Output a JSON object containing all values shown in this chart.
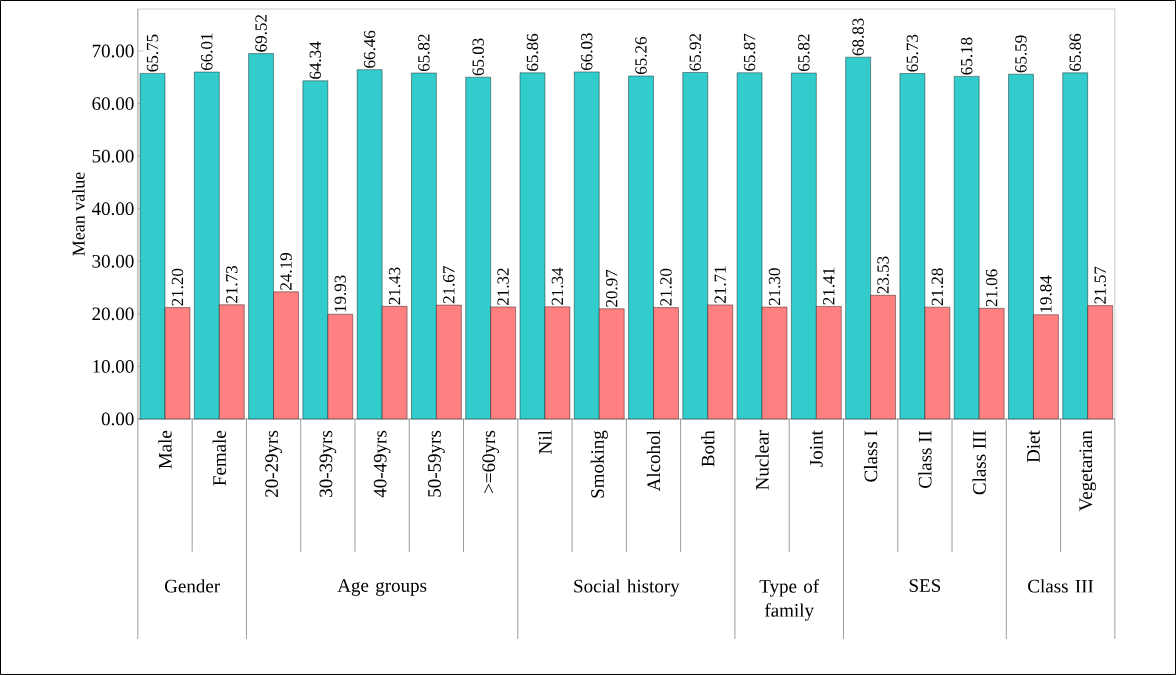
{
  "chart_data": {
    "type": "bar",
    "ylabel": "Mean value",
    "categories": [
      "Male",
      "Female",
      "20-29yrs",
      "30-39yrs",
      "40-49yrs",
      "50-59yrs",
      ">=60yrs",
      "Nil",
      "Smoking",
      "Alcohol",
      "Both",
      "Nuclear",
      "Joint",
      "Class I",
      "Class II",
      "Class III",
      "Diet",
      "Vegetarian"
    ],
    "series": [
      {
        "color": "#33cccc",
        "values": [
          65.75,
          66.01,
          69.52,
          64.34,
          66.46,
          65.82,
          65.03,
          65.86,
          66.03,
          65.26,
          65.92,
          65.87,
          65.82,
          68.83,
          65.73,
          65.18,
          65.59,
          65.86
        ],
        "value_labels": [
          "65.75",
          "66.01",
          "69.52",
          "64.34",
          "66.46",
          "65.82",
          "65.03",
          "65.86",
          "66.03",
          "65.26",
          "65.92",
          "65.87",
          "65.82",
          "68.83",
          "65.73",
          "65.18",
          "65.59",
          "65.86"
        ]
      },
      {
        "color": "#ff8080",
        "values": [
          21.2,
          21.73,
          24.19,
          19.93,
          21.43,
          21.67,
          21.32,
          21.34,
          20.97,
          21.2,
          21.71,
          21.3,
          21.41,
          23.53,
          21.28,
          21.06,
          19.84,
          21.57
        ],
        "value_labels": [
          "21.20",
          "21.73",
          "24.19",
          "19.93",
          "21.43",
          "21.67",
          "21.32",
          "21.34",
          "20.97",
          "21.20",
          "21.71",
          "21.30",
          "21.41",
          "23.53",
          "21.28",
          "21.06",
          "19.84",
          "21.57"
        ]
      }
    ],
    "ylim": [
      0,
      78
    ],
    "yticks": [
      {
        "value": 0,
        "label": "0.00"
      },
      {
        "value": 10,
        "label": "10.00"
      },
      {
        "value": 20,
        "label": "20.00"
      },
      {
        "value": 30,
        "label": "30.00"
      },
      {
        "value": 40,
        "label": "40.00"
      },
      {
        "value": 50,
        "label": "50.00"
      },
      {
        "value": 60,
        "label": "60.00"
      },
      {
        "value": 70,
        "label": "70.00"
      }
    ],
    "annotations": [
      "Gender",
      "Age groups",
      "Social history",
      "Type of family",
      "SES",
      "Class III"
    ]
  }
}
